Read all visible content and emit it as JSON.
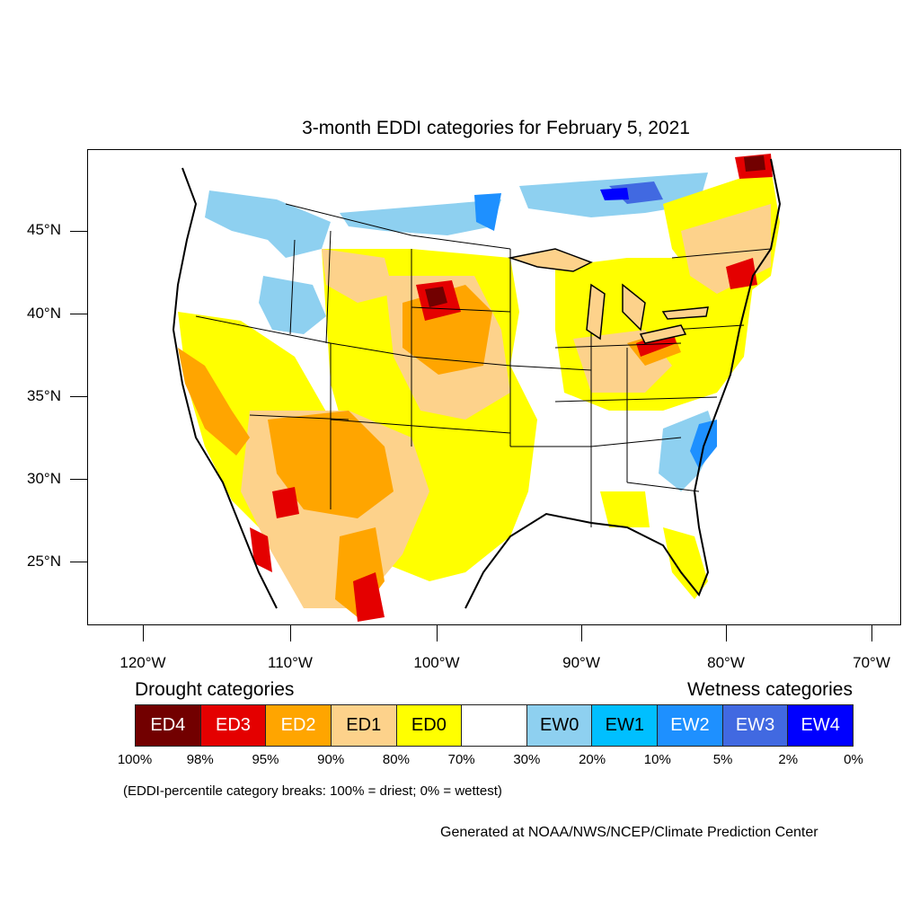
{
  "title": "3-month EDDI categories for February 5, 2021",
  "map": {
    "region": "Contiguous United States",
    "lat_labels": [
      "45°N",
      "40°N",
      "35°N",
      "30°N",
      "25°N"
    ],
    "lon_labels": [
      "120°W",
      "110°W",
      "100°W",
      "90°W",
      "80°W",
      "70°W"
    ]
  },
  "legend": {
    "drought_heading": "Drought categories",
    "wetness_heading": "Wetness categories",
    "categories": [
      {
        "label": "ED4",
        "color": "#720000",
        "text_color": "#ffffff"
      },
      {
        "label": "ED3",
        "color": "#e40000",
        "text_color": "#ffffff"
      },
      {
        "label": "ED2",
        "color": "#ffa500",
        "text_color": "#ffffff"
      },
      {
        "label": "ED1",
        "color": "#fdd28b",
        "text_color": "#000000"
      },
      {
        "label": "ED0",
        "color": "#ffff00",
        "text_color": "#000000"
      },
      {
        "label": "",
        "color": "#ffffff",
        "text_color": "#000000"
      },
      {
        "label": "EW0",
        "color": "#8ed0f0",
        "text_color": "#000000"
      },
      {
        "label": "EW1",
        "color": "#00bfff",
        "text_color": "#000000"
      },
      {
        "label": "EW2",
        "color": "#1e90ff",
        "text_color": "#ffffff"
      },
      {
        "label": "EW3",
        "color": "#4169e1",
        "text_color": "#ffffff"
      },
      {
        "label": "EW4",
        "color": "#0000ff",
        "text_color": "#ffffff"
      }
    ],
    "percent_breaks": [
      "100%",
      "98%",
      "95%",
      "90%",
      "80%",
      "70%",
      "30%",
      "20%",
      "10%",
      "5%",
      "2%",
      "0%"
    ]
  },
  "note": "(EDDI-percentile category breaks: 100% = driest; 0% = wettest)",
  "credit": "Generated at NOAA/NWS/NCEP/Climate Prediction Center"
}
